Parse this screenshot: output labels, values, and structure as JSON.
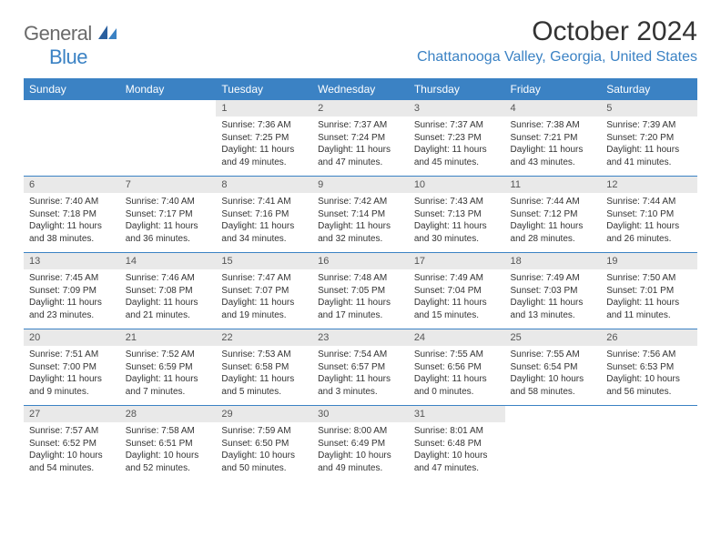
{
  "logo": {
    "general": "General",
    "blue": "Blue"
  },
  "title": "October 2024",
  "location": "Chattanooga Valley, Georgia, United States",
  "dow": [
    "Sunday",
    "Monday",
    "Tuesday",
    "Wednesday",
    "Thursday",
    "Friday",
    "Saturday"
  ],
  "colors": {
    "accent": "#3b82c4",
    "header_bg": "#3b82c4",
    "daynum_bg": "#e9e9e9",
    "text": "#333333",
    "logo_gray": "#6a6a6a"
  },
  "typography": {
    "title_size_pt": 22,
    "location_size_pt": 12,
    "dow_size_pt": 9,
    "daynum_size_pt": 8,
    "detail_size_pt": 7.5
  },
  "layout": {
    "cols": 7,
    "rows": 5,
    "col_width_pct": 14.28
  },
  "weeks": [
    [
      null,
      null,
      {
        "n": "1",
        "sunrise": "7:36 AM",
        "sunset": "7:25 PM",
        "daylight": "11 hours and 49 minutes."
      },
      {
        "n": "2",
        "sunrise": "7:37 AM",
        "sunset": "7:24 PM",
        "daylight": "11 hours and 47 minutes."
      },
      {
        "n": "3",
        "sunrise": "7:37 AM",
        "sunset": "7:23 PM",
        "daylight": "11 hours and 45 minutes."
      },
      {
        "n": "4",
        "sunrise": "7:38 AM",
        "sunset": "7:21 PM",
        "daylight": "11 hours and 43 minutes."
      },
      {
        "n": "5",
        "sunrise": "7:39 AM",
        "sunset": "7:20 PM",
        "daylight": "11 hours and 41 minutes."
      }
    ],
    [
      {
        "n": "6",
        "sunrise": "7:40 AM",
        "sunset": "7:18 PM",
        "daylight": "11 hours and 38 minutes."
      },
      {
        "n": "7",
        "sunrise": "7:40 AM",
        "sunset": "7:17 PM",
        "daylight": "11 hours and 36 minutes."
      },
      {
        "n": "8",
        "sunrise": "7:41 AM",
        "sunset": "7:16 PM",
        "daylight": "11 hours and 34 minutes."
      },
      {
        "n": "9",
        "sunrise": "7:42 AM",
        "sunset": "7:14 PM",
        "daylight": "11 hours and 32 minutes."
      },
      {
        "n": "10",
        "sunrise": "7:43 AM",
        "sunset": "7:13 PM",
        "daylight": "11 hours and 30 minutes."
      },
      {
        "n": "11",
        "sunrise": "7:44 AM",
        "sunset": "7:12 PM",
        "daylight": "11 hours and 28 minutes."
      },
      {
        "n": "12",
        "sunrise": "7:44 AM",
        "sunset": "7:10 PM",
        "daylight": "11 hours and 26 minutes."
      }
    ],
    [
      {
        "n": "13",
        "sunrise": "7:45 AM",
        "sunset": "7:09 PM",
        "daylight": "11 hours and 23 minutes."
      },
      {
        "n": "14",
        "sunrise": "7:46 AM",
        "sunset": "7:08 PM",
        "daylight": "11 hours and 21 minutes."
      },
      {
        "n": "15",
        "sunrise": "7:47 AM",
        "sunset": "7:07 PM",
        "daylight": "11 hours and 19 minutes."
      },
      {
        "n": "16",
        "sunrise": "7:48 AM",
        "sunset": "7:05 PM",
        "daylight": "11 hours and 17 minutes."
      },
      {
        "n": "17",
        "sunrise": "7:49 AM",
        "sunset": "7:04 PM",
        "daylight": "11 hours and 15 minutes."
      },
      {
        "n": "18",
        "sunrise": "7:49 AM",
        "sunset": "7:03 PM",
        "daylight": "11 hours and 13 minutes."
      },
      {
        "n": "19",
        "sunrise": "7:50 AM",
        "sunset": "7:01 PM",
        "daylight": "11 hours and 11 minutes."
      }
    ],
    [
      {
        "n": "20",
        "sunrise": "7:51 AM",
        "sunset": "7:00 PM",
        "daylight": "11 hours and 9 minutes."
      },
      {
        "n": "21",
        "sunrise": "7:52 AM",
        "sunset": "6:59 PM",
        "daylight": "11 hours and 7 minutes."
      },
      {
        "n": "22",
        "sunrise": "7:53 AM",
        "sunset": "6:58 PM",
        "daylight": "11 hours and 5 minutes."
      },
      {
        "n": "23",
        "sunrise": "7:54 AM",
        "sunset": "6:57 PM",
        "daylight": "11 hours and 3 minutes."
      },
      {
        "n": "24",
        "sunrise": "7:55 AM",
        "sunset": "6:56 PM",
        "daylight": "11 hours and 0 minutes."
      },
      {
        "n": "25",
        "sunrise": "7:55 AM",
        "sunset": "6:54 PM",
        "daylight": "10 hours and 58 minutes."
      },
      {
        "n": "26",
        "sunrise": "7:56 AM",
        "sunset": "6:53 PM",
        "daylight": "10 hours and 56 minutes."
      }
    ],
    [
      {
        "n": "27",
        "sunrise": "7:57 AM",
        "sunset": "6:52 PM",
        "daylight": "10 hours and 54 minutes."
      },
      {
        "n": "28",
        "sunrise": "7:58 AM",
        "sunset": "6:51 PM",
        "daylight": "10 hours and 52 minutes."
      },
      {
        "n": "29",
        "sunrise": "7:59 AM",
        "sunset": "6:50 PM",
        "daylight": "10 hours and 50 minutes."
      },
      {
        "n": "30",
        "sunrise": "8:00 AM",
        "sunset": "6:49 PM",
        "daylight": "10 hours and 49 minutes."
      },
      {
        "n": "31",
        "sunrise": "8:01 AM",
        "sunset": "6:48 PM",
        "daylight": "10 hours and 47 minutes."
      },
      null,
      null
    ]
  ],
  "labels": {
    "sunrise_prefix": "Sunrise: ",
    "sunset_prefix": "Sunset: ",
    "daylight_prefix": "Daylight: "
  }
}
